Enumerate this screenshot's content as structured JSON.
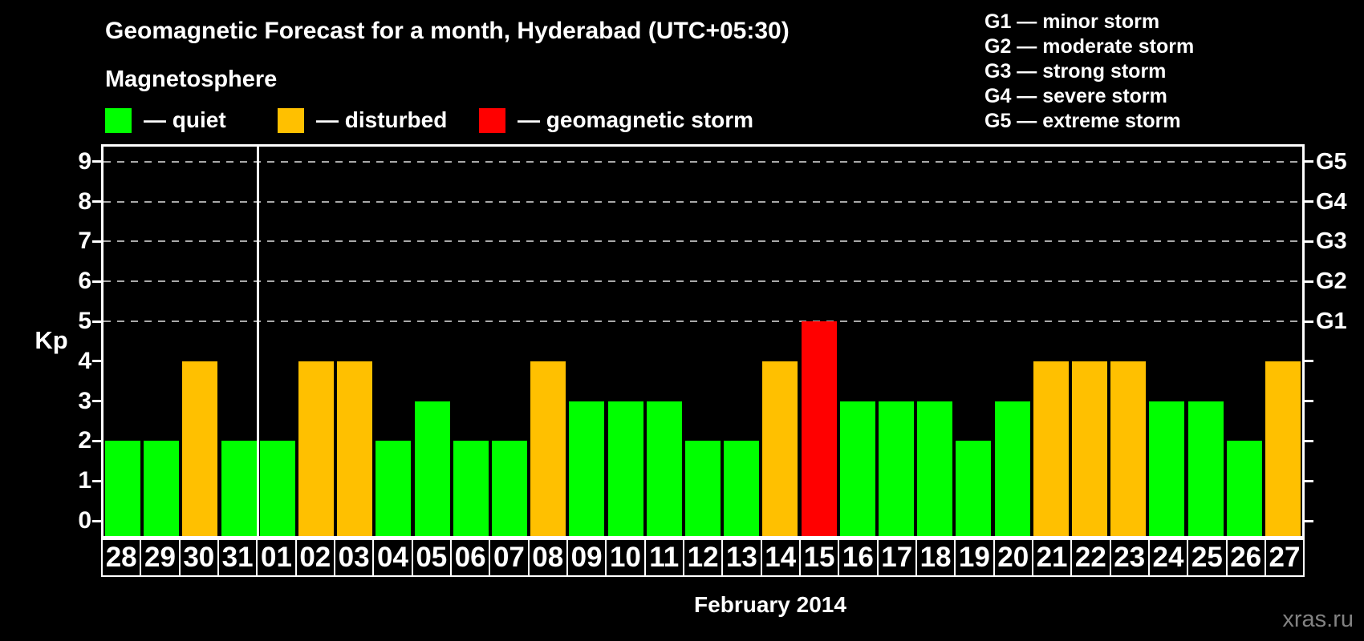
{
  "title": "Geomagnetic Forecast for a month, Hyderabad (UTC+05:30)",
  "subtitle": "Magnetosphere",
  "legend": {
    "items": [
      {
        "status": "quiet",
        "label": "— quiet"
      },
      {
        "status": "disturbed",
        "label": "— disturbed"
      },
      {
        "status": "storm",
        "label": "— geomagnetic storm"
      }
    ]
  },
  "g_legend": {
    "items": [
      "G1 — minor storm",
      "G2 — moderate storm",
      "G3 — strong storm",
      "G4 — severe storm",
      "G5 — extreme storm"
    ]
  },
  "chart_data": {
    "type": "bar",
    "title": "Geomagnetic Forecast for a month, Hyderabad (UTC+05:30)",
    "xlabel": "February 2014",
    "ylabel": "Kp",
    "ylim": [
      0,
      9
    ],
    "grid": "dashed horizontal lines at Kp 5,6,7,8,9",
    "legend_position": "top",
    "categories": [
      "28",
      "29",
      "30",
      "31",
      "01",
      "02",
      "03",
      "04",
      "05",
      "06",
      "07",
      "08",
      "09",
      "10",
      "11",
      "12",
      "13",
      "14",
      "15",
      "16",
      "17",
      "18",
      "19",
      "20",
      "21",
      "22",
      "23",
      "24",
      "25",
      "26",
      "27"
    ],
    "values": [
      2,
      2,
      4,
      2,
      2,
      4,
      4,
      2,
      3,
      2,
      2,
      4,
      3,
      3,
      3,
      2,
      2,
      4,
      5,
      3,
      3,
      3,
      2,
      3,
      4,
      4,
      4,
      3,
      3,
      2,
      4
    ],
    "statuses": [
      "quiet",
      "quiet",
      "disturbed",
      "quiet",
      "quiet",
      "disturbed",
      "disturbed",
      "quiet",
      "quiet",
      "quiet",
      "quiet",
      "disturbed",
      "quiet",
      "quiet",
      "quiet",
      "quiet",
      "quiet",
      "disturbed",
      "storm",
      "quiet",
      "quiet",
      "quiet",
      "quiet",
      "quiet",
      "disturbed",
      "disturbed",
      "disturbed",
      "quiet",
      "quiet",
      "quiet",
      "disturbed"
    ],
    "month_boundary_after_index": 3,
    "left_axis_ticks": [
      "0",
      "1",
      "2",
      "3",
      "4",
      "5",
      "6",
      "7",
      "8",
      "9"
    ],
    "right_axis_labels": [
      {
        "kp": 5,
        "label": "G1"
      },
      {
        "kp": 6,
        "label": "G2"
      },
      {
        "kp": 7,
        "label": "G3"
      },
      {
        "kp": 8,
        "label": "G4"
      },
      {
        "kp": 9,
        "label": "G5"
      }
    ]
  },
  "colors": {
    "quiet": "#00ff00",
    "disturbed": "#ffc000",
    "storm": "#ff0000",
    "background": "#000000",
    "grid": "#a9a9a9"
  },
  "watermark": "xras.ru"
}
